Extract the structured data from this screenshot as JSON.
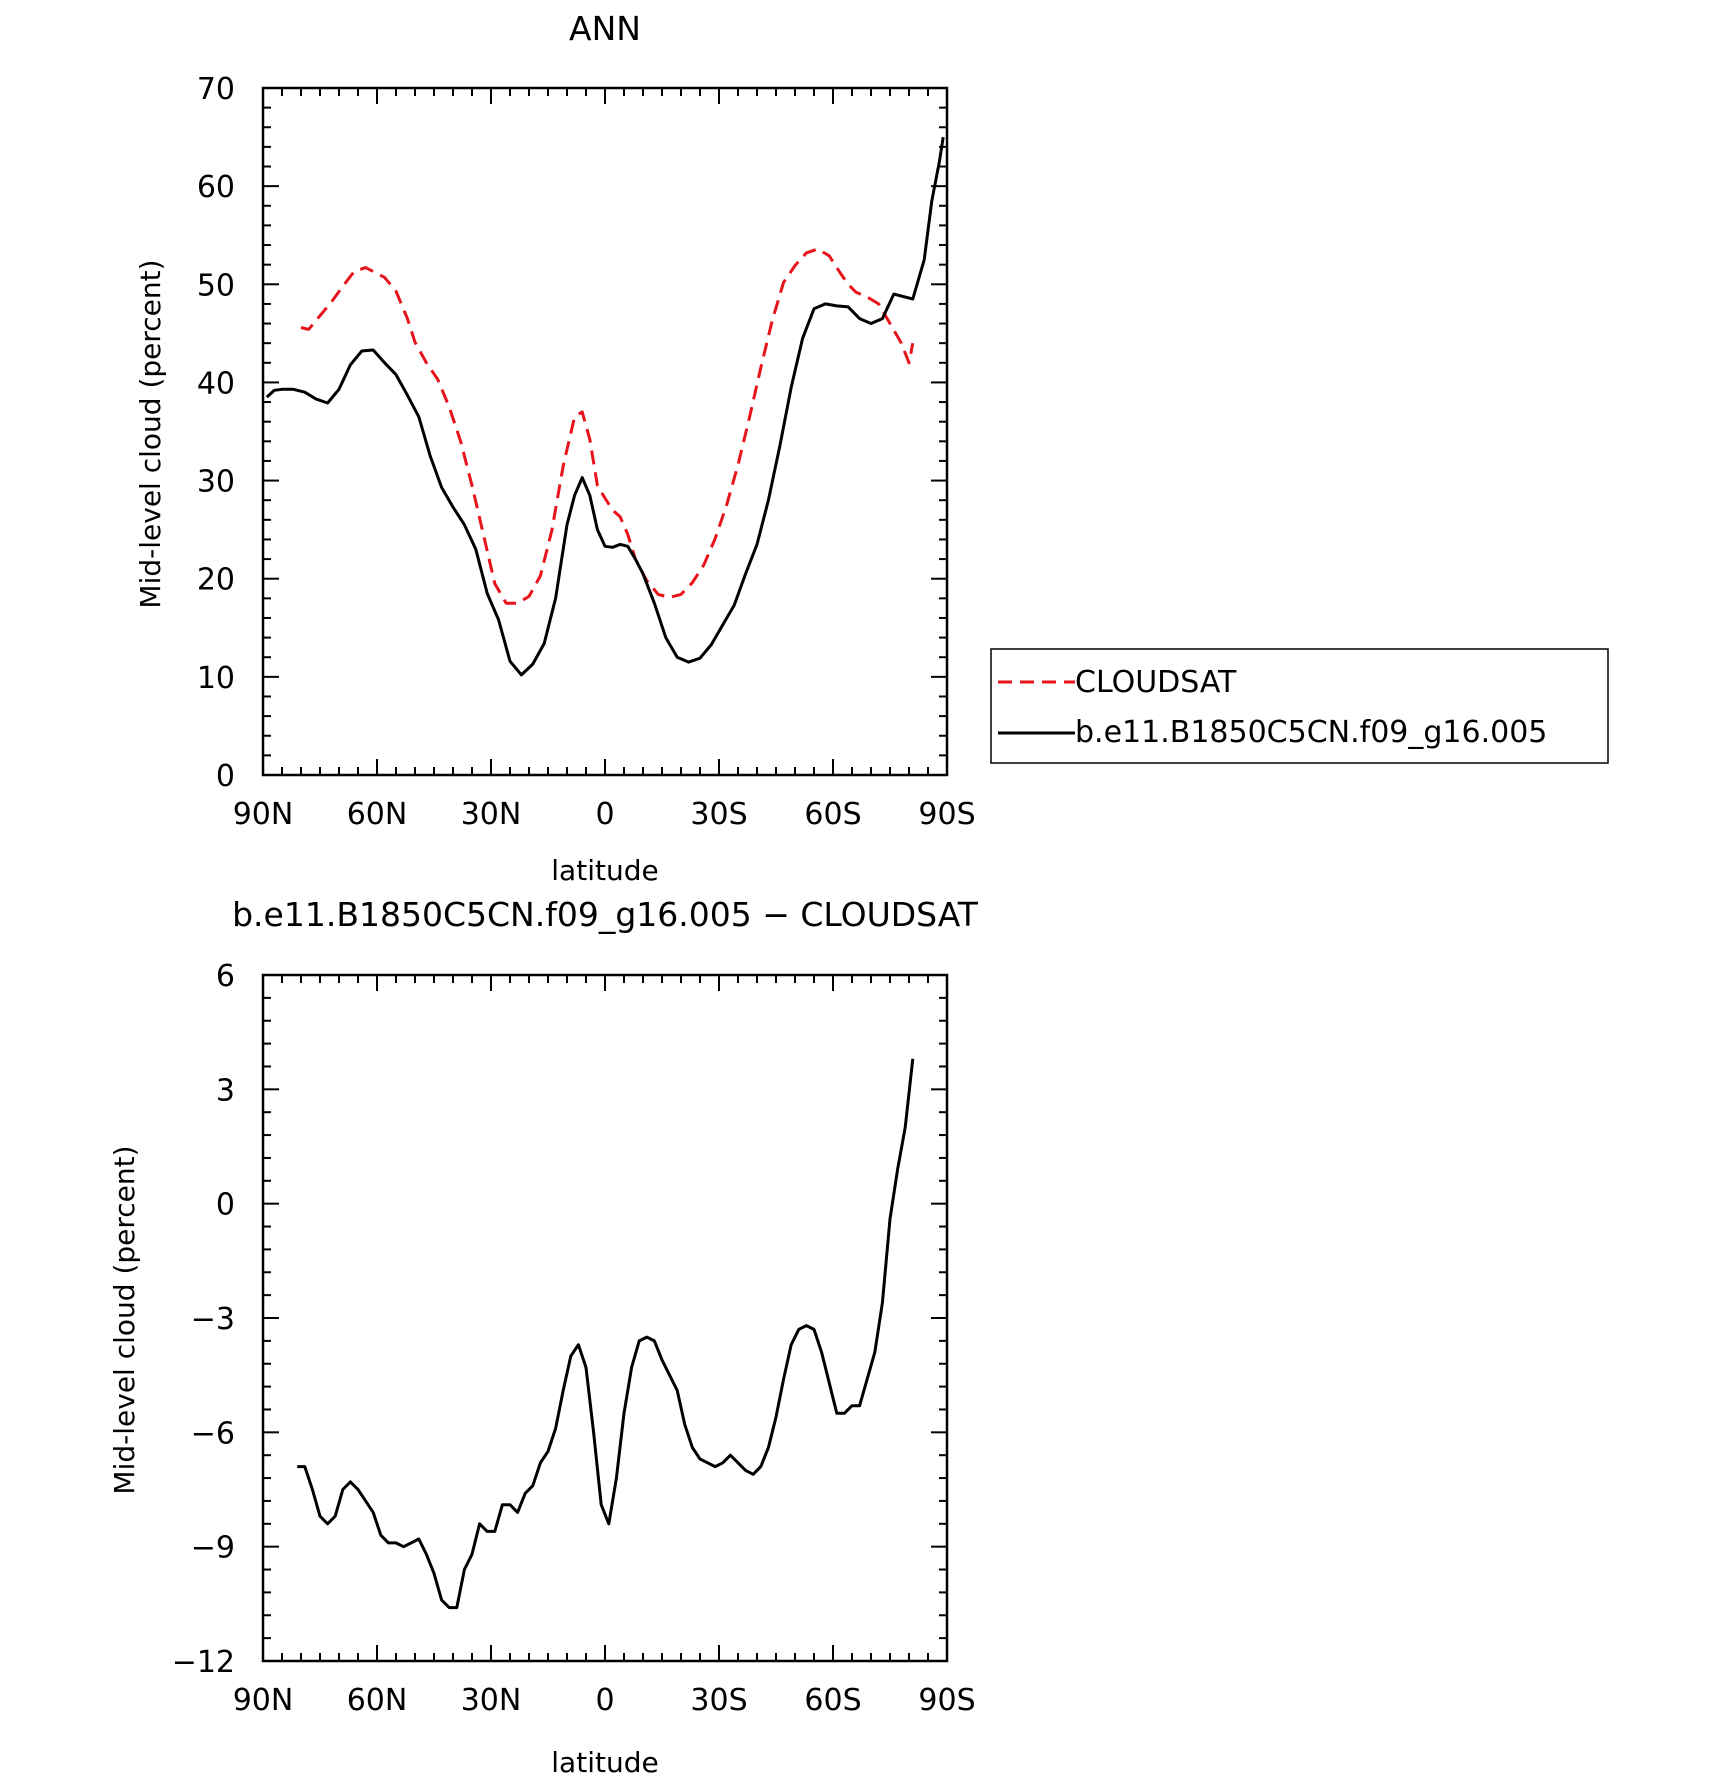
{
  "chart_data": [
    {
      "type": "line",
      "title": "ANN",
      "xlabel": "latitude",
      "ylabel": "Mid-level cloud (percent)",
      "xlim": [
        90,
        -90
      ],
      "ylim": [
        0,
        70
      ],
      "xticks": [
        90,
        60,
        30,
        0,
        -30,
        -60,
        -90
      ],
      "xtick_labels": [
        "90N",
        "60N",
        "30N",
        "0",
        "30S",
        "60S",
        "90S"
      ],
      "yticks": [
        0,
        10,
        20,
        30,
        40,
        50,
        60,
        70
      ],
      "ytick_labels": [
        "0",
        "10",
        "20",
        "30",
        "40",
        "50",
        "60",
        "70"
      ],
      "legend_position": "right",
      "series": [
        {
          "name": "CLOUDSAT",
          "color": "#e8141c",
          "dash": true,
          "x": [
            80,
            78,
            75,
            72,
            69,
            66,
            63,
            61,
            58,
            55,
            52,
            50,
            47,
            44,
            41,
            38,
            35,
            32,
            29,
            26,
            23,
            20,
            17,
            14,
            11,
            8,
            6,
            4,
            2,
            0,
            -2,
            -4,
            -6,
            -8,
            -11,
            -14,
            -17,
            -20,
            -23,
            -26,
            -29,
            -32,
            -35,
            -38,
            -41,
            -44,
            -47,
            -50,
            -53,
            -56,
            -59,
            -62,
            -64,
            -66,
            -69,
            -72,
            -75,
            -78,
            -80,
            -81
          ],
          "values": [
            45.6,
            45.4,
            46.8,
            48.2,
            49.8,
            51.3,
            51.7,
            51.3,
            50.7,
            49.3,
            46.5,
            44.1,
            42.0,
            40.3,
            37.5,
            34.0,
            29.5,
            24.5,
            19.5,
            17.5,
            17.5,
            18.2,
            20.3,
            24.9,
            31.5,
            36.5,
            37.0,
            34.2,
            29.5,
            28.2,
            27.0,
            26.3,
            24.5,
            22.0,
            19.8,
            18.4,
            18.1,
            18.4,
            19.6,
            21.4,
            24.1,
            27.5,
            31.6,
            36.4,
            41.5,
            46.3,
            50.2,
            51.9,
            53.2,
            53.6,
            52.9,
            51.1,
            50.0,
            49.2,
            48.7,
            48.0,
            46.0,
            44.0,
            42.0,
            44.0
          ]
        },
        {
          "name": "b.e11.B1850C5CN.f09_g16.005",
          "color": "#000000",
          "dash": false,
          "x": [
            89,
            87,
            85,
            82,
            79,
            76,
            73,
            70,
            67,
            64,
            61,
            58,
            55,
            52,
            49,
            46,
            43,
            40,
            37,
            34,
            31,
            28,
            25,
            22,
            19,
            16,
            13,
            10,
            8,
            6,
            4,
            2,
            0,
            -2,
            -4,
            -6,
            -8,
            -10,
            -13,
            -16,
            -19,
            -22,
            -25,
            -28,
            -31,
            -34,
            -37,
            -40,
            -43,
            -46,
            -49,
            -52,
            -55,
            -58,
            -61,
            -64,
            -67,
            -70,
            -73,
            -76,
            -78,
            -81,
            -84,
            -86,
            -88,
            -89
          ],
          "values": [
            38.5,
            39.2,
            39.3,
            39.3,
            39.0,
            38.3,
            37.9,
            39.3,
            41.8,
            43.2,
            43.3,
            42.0,
            40.8,
            38.7,
            36.5,
            32.5,
            29.3,
            27.3,
            25.5,
            23.0,
            18.5,
            15.8,
            11.6,
            10.2,
            11.3,
            13.4,
            18.0,
            25.5,
            28.5,
            30.3,
            28.5,
            25.0,
            23.3,
            23.2,
            23.5,
            23.3,
            22.0,
            20.5,
            17.5,
            14.0,
            12.0,
            11.5,
            11.9,
            13.3,
            15.3,
            17.3,
            20.5,
            23.5,
            28.0,
            33.5,
            39.5,
            44.5,
            47.5,
            48.0,
            47.8,
            47.7,
            46.5,
            46.0,
            46.5,
            49.0,
            48.8,
            48.5,
            52.5,
            58.5,
            62.5,
            65.0
          ]
        }
      ]
    },
    {
      "type": "line",
      "title": "b.e11.B1850C5CN.f09_g16.005 − CLOUDSAT",
      "xlabel": "latitude",
      "ylabel": "Mid-level cloud (percent)",
      "xlim": [
        90,
        -90
      ],
      "ylim": [
        -12,
        6
      ],
      "xticks": [
        90,
        60,
        30,
        0,
        -30,
        -60,
        -90
      ],
      "xtick_labels": [
        "90N",
        "60N",
        "30N",
        "0",
        "30S",
        "60S",
        "90S"
      ],
      "yticks": [
        6,
        3,
        0,
        -3,
        -6,
        -9,
        -12
      ],
      "ytick_labels": [
        "6",
        "3",
        "0",
        "−3",
        "−6",
        "−9",
        "−12"
      ],
      "series": [
        {
          "name": "",
          "color": "#000000",
          "dash": false,
          "x": [
            81,
            79,
            77,
            75,
            73,
            71,
            69,
            67,
            65,
            63,
            61,
            59,
            57,
            55,
            53,
            51,
            49,
            47,
            45,
            43,
            41,
            39,
            37,
            35,
            33,
            31,
            29,
            27,
            25,
            23,
            21,
            19,
            17,
            15,
            13,
            11,
            9,
            7,
            5,
            3,
            1,
            -1,
            -3,
            -5,
            -7,
            -9,
            -11,
            -13,
            -15,
            -17,
            -19,
            -21,
            -23,
            -25,
            -27,
            -29,
            -31,
            -33,
            -35,
            -37,
            -39,
            -41,
            -43,
            -45,
            -47,
            -49,
            -51,
            -53,
            -55,
            -57,
            -59,
            -61,
            -63,
            -65,
            -67,
            -69,
            -71,
            -73,
            -75,
            -77,
            -79,
            -81
          ],
          "values": [
            -6.9,
            -6.9,
            -7.5,
            -8.2,
            -8.4,
            -8.2,
            -7.5,
            -7.3,
            -7.5,
            -7.8,
            -8.1,
            -8.7,
            -8.9,
            -8.9,
            -9.0,
            -8.9,
            -8.8,
            -9.2,
            -9.7,
            -10.4,
            -10.6,
            -10.6,
            -9.6,
            -9.2,
            -8.4,
            -8.6,
            -8.6,
            -7.9,
            -7.9,
            -8.1,
            -7.6,
            -7.4,
            -6.8,
            -6.5,
            -5.9,
            -4.9,
            -4.0,
            -3.7,
            -4.3,
            -6.0,
            -7.9,
            -8.4,
            -7.2,
            -5.5,
            -4.3,
            -3.6,
            -3.5,
            -3.6,
            -4.1,
            -4.5,
            -4.9,
            -5.8,
            -6.4,
            -6.7,
            -6.8,
            -6.9,
            -6.8,
            -6.6,
            -6.8,
            -7.0,
            -7.1,
            -6.9,
            -6.4,
            -5.6,
            -4.6,
            -3.7,
            -3.3,
            -3.2,
            -3.3,
            -3.9,
            -4.7,
            -5.5,
            -5.5,
            -5.3,
            -5.3,
            -4.6,
            -3.9,
            -2.6,
            -0.4,
            0.9,
            2.0,
            3.8
          ]
        }
      ]
    }
  ]
}
